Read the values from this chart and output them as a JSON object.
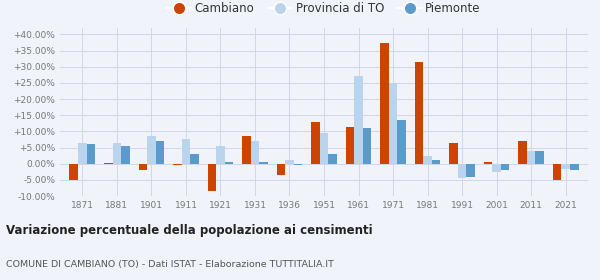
{
  "years": [
    1871,
    1881,
    1901,
    1911,
    1921,
    1931,
    1936,
    1951,
    1961,
    1971,
    1981,
    1991,
    2001,
    2011,
    2021
  ],
  "cambiano": [
    -5.2,
    0.1,
    -2.0,
    -0.5,
    -8.5,
    8.5,
    -3.5,
    13.0,
    11.5,
    37.5,
    31.5,
    6.5,
    0.5,
    7.0,
    -5.0
  ],
  "provincia_to": [
    6.5,
    6.5,
    8.5,
    7.5,
    5.5,
    7.0,
    1.0,
    9.5,
    27.0,
    25.0,
    2.5,
    -4.5,
    -2.5,
    4.0,
    -1.5
  ],
  "piemonte": [
    6.0,
    5.5,
    7.0,
    3.0,
    0.5,
    0.5,
    -0.5,
    3.0,
    11.0,
    13.5,
    1.0,
    -4.0,
    -2.0,
    4.0,
    -2.0
  ],
  "color_cambiano": "#cc4400",
  "color_provincia": "#bad4ed",
  "color_piemonte": "#5b9bcc",
  "title": "Variazione percentuale della popolazione ai censimenti",
  "subtitle": "COMUNE DI CAMBIANO (TO) - Dati ISTAT - Elaborazione TUTTITALIA.IT",
  "legend_labels": [
    "Cambiano",
    "Provincia di TO",
    "Piemonte"
  ],
  "ylim": [
    -10,
    42
  ],
  "yticks": [
    -10,
    -5,
    0,
    5,
    10,
    15,
    20,
    25,
    30,
    35,
    40
  ],
  "background_color": "#f0f4fa",
  "grid_color": "#d0d8e8"
}
